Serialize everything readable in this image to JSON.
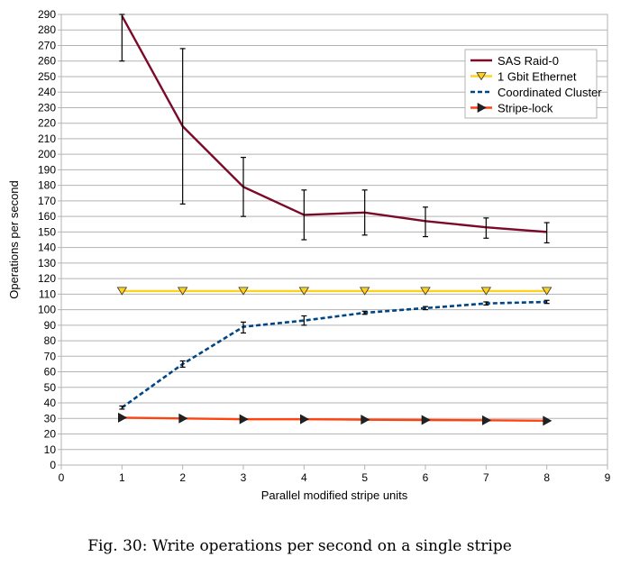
{
  "caption": "Fig. 30: Write operations per second on a single stripe",
  "chart_data": {
    "type": "line",
    "xlabel": "Parallel modified stripe units",
    "ylabel": "Operations per second",
    "xlim": [
      0,
      9
    ],
    "ylim": [
      0,
      290
    ],
    "xticks": [
      0,
      1,
      2,
      3,
      4,
      5,
      6,
      7,
      8,
      9
    ],
    "yticks": [
      0,
      10,
      20,
      30,
      40,
      50,
      60,
      70,
      80,
      90,
      100,
      110,
      120,
      130,
      140,
      150,
      160,
      170,
      180,
      190,
      200,
      210,
      220,
      230,
      240,
      250,
      260,
      270,
      280,
      290
    ],
    "grid": "horizontal",
    "legend_position": "top-right",
    "x": [
      1,
      2,
      3,
      4,
      5,
      6,
      7,
      8
    ],
    "series": [
      {
        "name": "SAS Raid-0",
        "values": [
          289,
          218,
          179,
          161,
          162.5,
          157,
          153,
          150
        ],
        "err_low": [
          260,
          168,
          160,
          145,
          148,
          147,
          146,
          143
        ],
        "err_high": [
          290,
          268,
          198,
          177,
          177,
          166,
          159,
          156
        ],
        "color": "#7b0a2a",
        "style": "solid",
        "marker": "none"
      },
      {
        "name": "1 Gbit Ethernet",
        "values": [
          112,
          112,
          112,
          112,
          112,
          112,
          112,
          112
        ],
        "color": "#ffd21f",
        "style": "solid",
        "marker": "triangle-down"
      },
      {
        "name": "Coordinated Cluster",
        "values": [
          37,
          65,
          89,
          93,
          98,
          101,
          104,
          105
        ],
        "err_low": [
          36,
          63,
          85,
          90,
          97,
          100,
          103,
          104
        ],
        "err_high": [
          38,
          67,
          92,
          96,
          99,
          102,
          105,
          106
        ],
        "color": "#004586",
        "style": "dashed",
        "marker": "none"
      },
      {
        "name": "Stripe-lock",
        "values": [
          30.5,
          30,
          29.5,
          29.5,
          29.2,
          29,
          28.8,
          28.5
        ],
        "color": "#ff420e",
        "style": "solid",
        "marker": "triangle-right"
      }
    ]
  }
}
